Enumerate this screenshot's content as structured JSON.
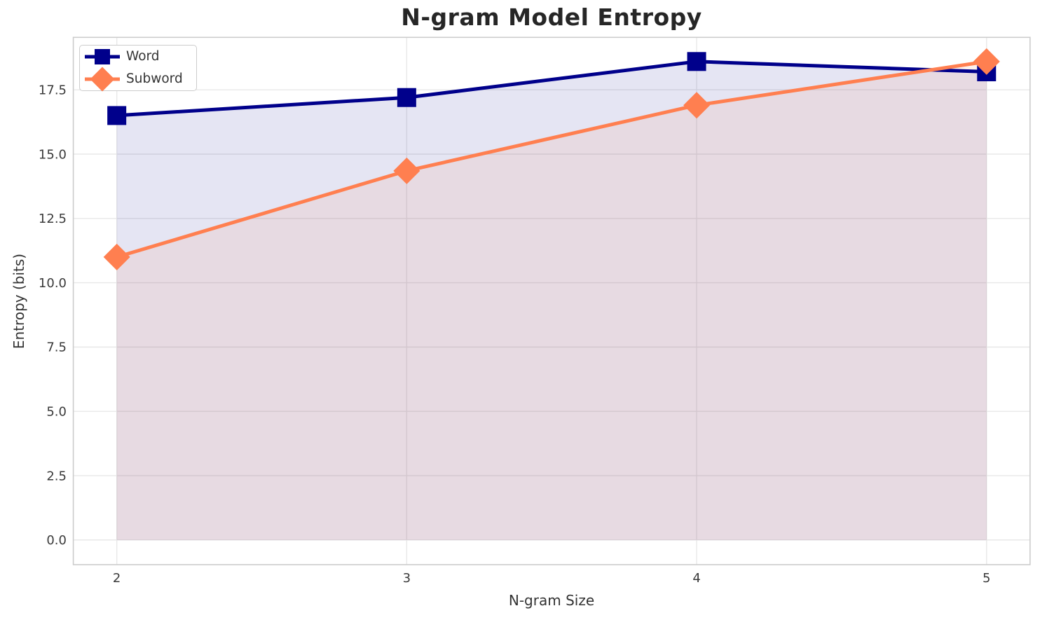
{
  "chart_data": {
    "type": "line",
    "title": "N-gram Model Entropy",
    "xlabel": "N-gram Size",
    "ylabel": "Entropy (bits)",
    "x": [
      2,
      3,
      4,
      5
    ],
    "x_tick_labels": [
      "2",
      "3",
      "4",
      "5"
    ],
    "y_ticks": [
      0.0,
      2.5,
      5.0,
      7.5,
      10.0,
      12.5,
      15.0,
      17.5
    ],
    "y_tick_labels": [
      "0.0",
      "2.5",
      "5.0",
      "7.5",
      "10.0",
      "12.5",
      "15.0",
      "17.5"
    ],
    "xlim": [
      1.85,
      5.15
    ],
    "ylim": [
      -0.96,
      19.54
    ],
    "grid": true,
    "legend_position": "upper left",
    "fill_to_zero": true,
    "series": [
      {
        "name": "Word",
        "values": [
          16.5,
          17.2,
          18.6,
          18.2
        ],
        "color": "#00008b",
        "marker": "square",
        "fill_alpha": 0.1,
        "line_width": 5
      },
      {
        "name": "Subword",
        "values": [
          11.0,
          14.35,
          16.9,
          18.6
        ],
        "color": "#ff7f50",
        "marker": "diamond",
        "fill_alpha": 0.1,
        "line_width": 5
      }
    ]
  },
  "appearance": {
    "grid_color": "#e8e8e8",
    "spine_color": "#cccccc",
    "title_color": "#262626",
    "tick_label_color": "#3a3a3a",
    "axis_label_color": "#333333",
    "background": "#ffffff"
  }
}
